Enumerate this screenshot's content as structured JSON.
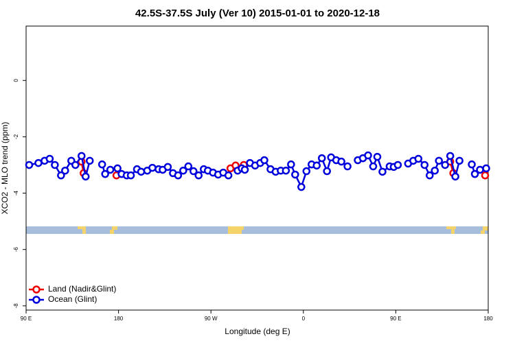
{
  "chart_data": {
    "type": "line",
    "title": "42.5S-37.5S July (Ver 10)   2015-01-01 to 2020-12-18",
    "x_label": "Longitude (deg E)",
    "y_label": "XCO2 - MLO trend (ppm)",
    "xlim": [
      90,
      540
    ],
    "ylim": [
      -8.15,
      1.93
    ],
    "xticks": [
      {
        "value": 90,
        "label": "90 E"
      },
      {
        "value": 180,
        "label": "180"
      },
      {
        "value": 270,
        "label": "90 W"
      },
      {
        "value": 360,
        "label": "0"
      },
      {
        "value": 450,
        "label": "90 E"
      },
      {
        "value": 540,
        "label": "180"
      }
    ],
    "yticks": [
      -8,
      -6,
      -4,
      -2,
      0
    ],
    "legend": "bottom-left",
    "series": [
      {
        "name": "Land (Nadir&Glint)",
        "color": "#ee0000",
        "x": [
          144,
          146,
          null,
          178,
          null,
          289,
          294,
          null,
          302,
          null,
          503,
          506,
          null,
          537
        ],
        "values": [
          -2.88,
          -3.29,
          null,
          -3.37,
          null,
          -3.12,
          -3.02,
          null,
          -3.0,
          null,
          -2.88,
          -3.29,
          null,
          -3.37
        ]
      },
      {
        "name": "Ocean (Glint)",
        "color": "#0000dd",
        "x": [
          93,
          102,
          108,
          113,
          118,
          124,
          128,
          134,
          138,
          144,
          148,
          152,
          null,
          164,
          167,
          172,
          179,
          183,
          188,
          192,
          198,
          202,
          208,
          213,
          219,
          223,
          228,
          233,
          238,
          243,
          248,
          253,
          258,
          263,
          267,
          272,
          277,
          282,
          287,
          null,
          296,
          300,
          303,
          308,
          313,
          318,
          322,
          328,
          333,
          338,
          343,
          348,
          352,
          358,
          363,
          368,
          373,
          378,
          383,
          387,
          392,
          397,
          403,
          null,
          413,
          418,
          423,
          428,
          432,
          437,
          444,
          448,
          452,
          null,
          462,
          467,
          472,
          478,
          483,
          488,
          492,
          498,
          503,
          508,
          512,
          null,
          524,
          527,
          532,
          538
        ],
        "values": [
          -3.0,
          -2.93,
          -2.85,
          -2.78,
          -3.0,
          -3.37,
          -3.2,
          -2.85,
          -3.0,
          -2.68,
          -3.41,
          -2.85,
          null,
          -2.98,
          -3.32,
          -3.17,
          -3.12,
          -3.32,
          -3.37,
          -3.37,
          -3.15,
          -3.24,
          -3.2,
          -3.1,
          -3.15,
          -3.17,
          -3.07,
          -3.29,
          -3.37,
          -3.2,
          -3.05,
          -3.22,
          -3.37,
          -3.15,
          -3.2,
          -3.27,
          -3.34,
          -3.27,
          -3.37,
          null,
          -3.2,
          -3.12,
          -3.17,
          -2.93,
          -3.02,
          -2.93,
          -2.83,
          -3.15,
          -3.24,
          -3.2,
          -3.2,
          -2.98,
          -3.34,
          -3.78,
          -3.22,
          -2.98,
          -3.02,
          -2.76,
          -3.22,
          -2.73,
          -2.83,
          -2.88,
          -3.05,
          null,
          -2.83,
          -2.76,
          -2.66,
          -3.05,
          -2.71,
          -3.24,
          -3.05,
          -3.07,
          -3.0,
          null,
          -2.95,
          -2.85,
          -2.78,
          -3.0,
          -3.37,
          -3.2,
          -2.85,
          -3.0,
          -2.68,
          -3.41,
          -2.85,
          null,
          -2.98,
          -3.32,
          -3.17,
          -3.12
        ]
      }
    ]
  }
}
